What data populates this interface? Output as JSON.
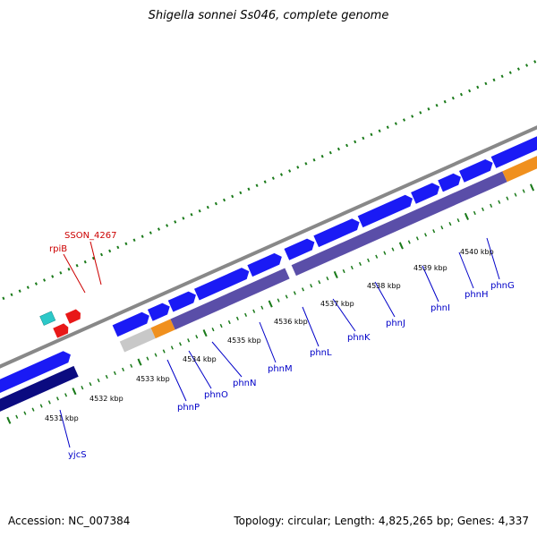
{
  "title": "Shigella sonnei Ss046, complete genome",
  "footer": {
    "accession": "Accession: NC_007384",
    "topology": "Topology: circular; Length: 4,825,265 bp; Genes: 4,337"
  },
  "colors": {
    "forward_cds": "#1a1af5",
    "reverse_cds_dark": "#0b0b80",
    "reverse_cds": "#5a4ea8",
    "rna_teal": "#2cc8c8",
    "rna_red": "#e81818",
    "orange": "#f0901e",
    "pseudo_gray": "#c8c8c8",
    "backbone": "#888888",
    "ticks": "#1a7a1a",
    "gene_label": "#0000c8",
    "rna_label": "#cc0000"
  },
  "scale_labels": [
    "4531 kbp",
    "4532 kbp",
    "4533 kbp",
    "4534 kbp",
    "4535 kbp",
    "4536 kbp",
    "4537 kbp",
    "4538 kbp",
    "4539 kbp",
    "4540 kbp"
  ],
  "gene_labels": [
    "yjcS",
    "phnP",
    "phnO",
    "phnN",
    "phnM",
    "phnL",
    "phnK",
    "phnJ",
    "phnI",
    "phnH",
    "phnG"
  ],
  "rna_labels": [
    "SSON_4267",
    "rpiB"
  ]
}
